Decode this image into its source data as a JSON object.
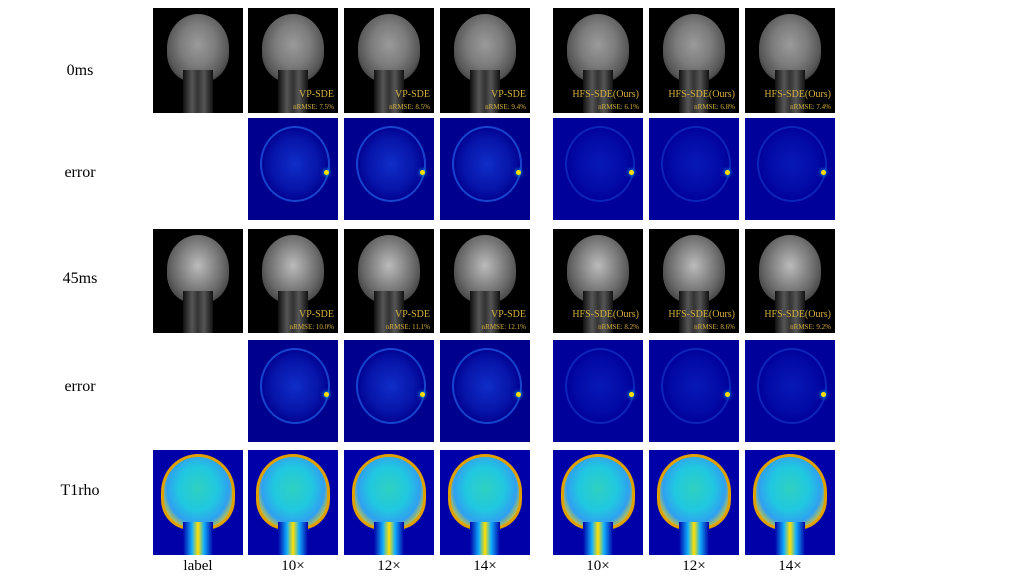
{
  "row_labels": [
    "0ms",
    "error",
    "45ms",
    "error",
    "T1rho"
  ],
  "column_labels": [
    "label",
    "10×",
    "12×",
    "14×",
    "10×",
    "12×",
    "14×"
  ],
  "rows": {
    "r0ms": [
      {
        "method": "",
        "nrmse": ""
      },
      {
        "method": "VP-SDE",
        "nrmse": "nRMSE: 7.5%"
      },
      {
        "method": "VP-SDE",
        "nrmse": "nRMSE: 8.5%"
      },
      {
        "method": "VP-SDE",
        "nrmse": "nRMSE: 9.4%"
      },
      {
        "method": "HFS-SDE(Ours)",
        "nrmse": "nRMSE: 6.1%"
      },
      {
        "method": "HFS-SDE(Ours)",
        "nrmse": "nRMSE: 6.8%"
      },
      {
        "method": "HFS-SDE(Ours)",
        "nrmse": "nRMSE: 7.4%"
      }
    ],
    "r45ms": [
      {
        "method": "",
        "nrmse": ""
      },
      {
        "method": "VP-SDE",
        "nrmse": "nRMSE: 10.0%"
      },
      {
        "method": "VP-SDE",
        "nrmse": "nRMSE: 11.1%"
      },
      {
        "method": "VP-SDE",
        "nrmse": "nRMSE: 12.1%"
      },
      {
        "method": "HFS-SDE(Ours)",
        "nrmse": "nRMSE: 8.2%"
      },
      {
        "method": "HFS-SDE(Ours)",
        "nrmse": "nRMSE: 8.6%"
      },
      {
        "method": "HFS-SDE(Ours)",
        "nrmse": "nRMSE: 9.2%"
      }
    ]
  },
  "colors": {
    "annotation": "#d4b040",
    "error_background": "#00008f"
  }
}
